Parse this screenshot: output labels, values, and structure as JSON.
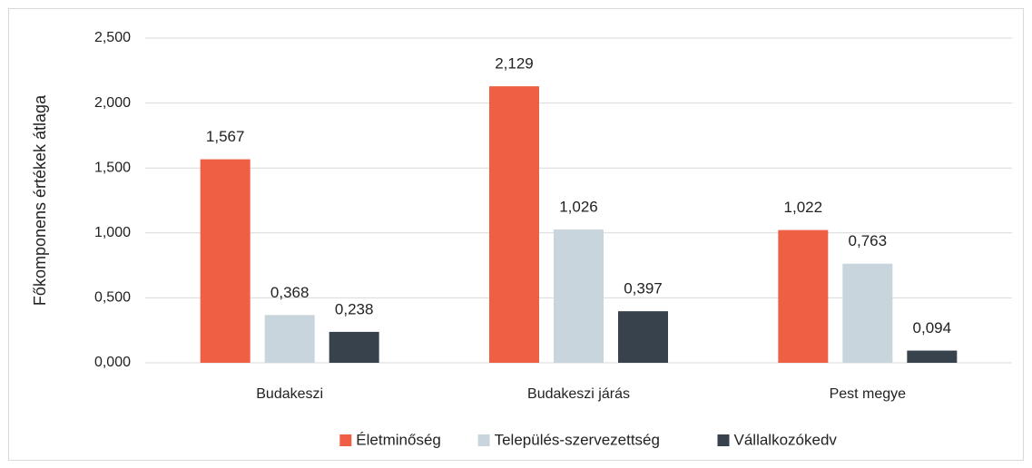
{
  "chart_data": {
    "type": "bar",
    "y_label": "Főkomponens értékek átlaga",
    "categories": [
      "Budakeszi",
      "Budakeszi járás",
      "Pest megye"
    ],
    "series": [
      {
        "name": "Életminőség",
        "color": "#ef5f43",
        "values": [
          1.567,
          2.129,
          1.022
        ],
        "value_labels": [
          "1,567",
          "2,129",
          "1,022"
        ]
      },
      {
        "name": "Település-szervezettség",
        "color": "#c9d5dc",
        "values": [
          0.368,
          1.026,
          0.763
        ],
        "value_labels": [
          "0,368",
          "1,026",
          "0,763"
        ]
      },
      {
        "name": "Vállalkozókedv",
        "color": "#37424d",
        "values": [
          0.238,
          0.397,
          0.094
        ],
        "value_labels": [
          "0,238",
          "0,397",
          "0,094"
        ]
      }
    ],
    "ylim": [
      0,
      2.5
    ],
    "yticks": [
      {
        "value": 0,
        "label": "0,000"
      },
      {
        "value": 0.5,
        "label": "0,500"
      },
      {
        "value": 1,
        "label": "1,000"
      },
      {
        "value": 1.5,
        "label": "1,500"
      },
      {
        "value": 2,
        "label": "2,000"
      },
      {
        "value": 2.5,
        "label": "2,500"
      }
    ],
    "grid": true,
    "legend": "bottom"
  }
}
